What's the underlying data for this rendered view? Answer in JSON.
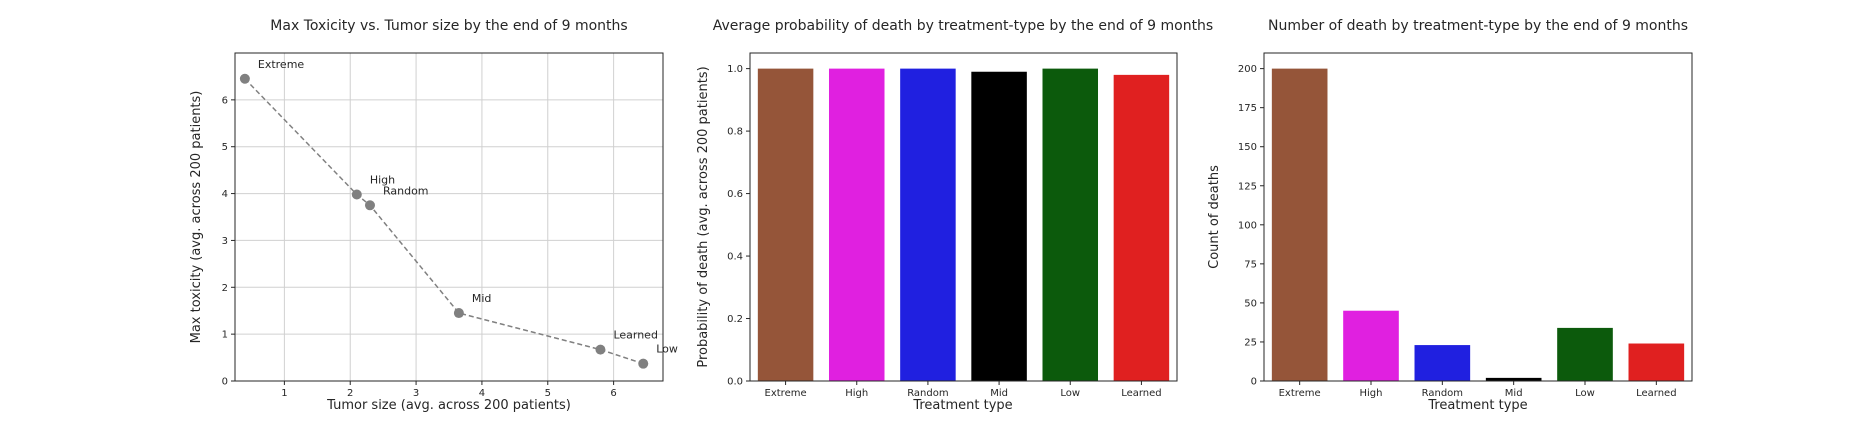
{
  "chart_data": [
    {
      "type": "scatter",
      "title": "Max Toxicity vs. Tumor size by the end of 9 months",
      "xlabel": "Tumor size (avg. across 200 patients)",
      "ylabel": "Max toxicity (avg. across 200 patients)",
      "xlim": [
        0.25,
        6.75
      ],
      "ylim": [
        0,
        7
      ],
      "xticks": [
        1,
        2,
        3,
        4,
        5,
        6
      ],
      "yticks": [
        0,
        1,
        2,
        3,
        4,
        5,
        6
      ],
      "grid": true,
      "line_style": "dashed",
      "point_color": "#808080",
      "points": [
        {
          "label": "Extreme",
          "x": 0.4,
          "y": 6.45
        },
        {
          "label": "High",
          "x": 2.1,
          "y": 3.98
        },
        {
          "label": "Random",
          "x": 2.3,
          "y": 3.75
        },
        {
          "label": "Mid",
          "x": 3.65,
          "y": 1.45
        },
        {
          "label": "Learned",
          "x": 5.8,
          "y": 0.67
        },
        {
          "label": "Low",
          "x": 6.45,
          "y": 0.37
        }
      ]
    },
    {
      "type": "bar",
      "title": "Average probability of death by treatment-type by the end of 9 months",
      "xlabel": "Treatment type",
      "ylabel": "Probability of death (avg. across 200 patients)",
      "ylim": [
        0,
        1.05
      ],
      "yticks": [
        0.0,
        0.2,
        0.4,
        0.6,
        0.8,
        1.0
      ],
      "grid": false,
      "categories": [
        "Extreme",
        "High",
        "Random",
        "Mid",
        "Low",
        "Learned"
      ],
      "values": [
        1.0,
        1.0,
        1.0,
        0.99,
        1.0,
        0.98
      ],
      "colors": [
        "#955539",
        "#e020e0",
        "#2020e0",
        "#000000",
        "#0c5a0c",
        "#e02020"
      ]
    },
    {
      "type": "bar",
      "title": "Number of death by treatment-type by the end of 9 months",
      "xlabel": "Treatment type",
      "ylabel": "Count of deaths",
      "ylim": [
        0,
        210
      ],
      "yticks": [
        0,
        25,
        50,
        75,
        100,
        125,
        150,
        175,
        200
      ],
      "grid": false,
      "categories": [
        "Extreme",
        "High",
        "Random",
        "Mid",
        "Low",
        "Learned"
      ],
      "values": [
        200,
        45,
        23,
        2,
        34,
        24
      ],
      "colors": [
        "#955539",
        "#e020e0",
        "#2020e0",
        "#000000",
        "#0c5a0c",
        "#e02020"
      ]
    }
  ]
}
